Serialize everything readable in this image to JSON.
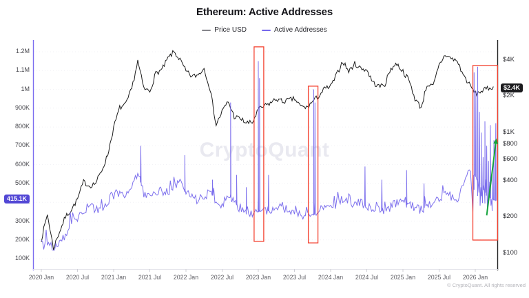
{
  "header": {
    "title": "Ethereum: Active Addresses"
  },
  "legend": [
    {
      "label": "Price USD",
      "color": "#85858b"
    },
    {
      "label": "Active Addresses",
      "color": "#7668ec"
    }
  ],
  "watermark": "CryptoQuant",
  "footer": {
    "copyright": "© CryptoQuant. All rights reserved"
  },
  "chart_data": {
    "type": "line",
    "title": "Ethereum: Active Addresses",
    "x_axis": {
      "start": "2020-01",
      "step": "month",
      "tick_every_months": 6,
      "tick_labels": [
        "2020 Jan",
        "2020 Jul",
        "2021 Jan",
        "2021 Jul",
        "2022 Jan",
        "2022 Jul",
        "2023 Jan",
        "2023 Jul",
        "2024 Jan",
        "2024 Jul",
        "2025 Jan",
        "2025 Jul",
        "2026 Jan"
      ]
    },
    "left_axis": {
      "name": "Active Addresses",
      "scale": "linear",
      "unit": "addresses",
      "range_k": [
        100,
        1200
      ],
      "ticks": [
        {
          "label": "1.2M",
          "value_k": 1200
        },
        {
          "label": "1.1M",
          "value_k": 1100
        },
        {
          "label": "1M",
          "value_k": 1000
        },
        {
          "label": "900K",
          "value_k": 900
        },
        {
          "label": "800K",
          "value_k": 800
        },
        {
          "label": "700K",
          "value_k": 700
        },
        {
          "label": "600K",
          "value_k": 600
        },
        {
          "label": "500K",
          "value_k": 500
        },
        {
          "label": "400K",
          "value_k": 400
        },
        {
          "label": "300K",
          "value_k": 300
        },
        {
          "label": "200K",
          "value_k": 200
        },
        {
          "label": "100K",
          "value_k": 100
        }
      ],
      "current": {
        "label": "415.1K",
        "value_k": 415.1,
        "badge_color": "#5247d5"
      }
    },
    "right_axis": {
      "name": "Price USD",
      "scale": "log",
      "range_usd": [
        100,
        4700
      ],
      "ticks": [
        {
          "label": "$4K",
          "value": 4000
        },
        {
          "label": "$2K",
          "value": 2000
        },
        {
          "label": "$1K",
          "value": 1000
        },
        {
          "label": "$800",
          "value": 800
        },
        {
          "label": "$600",
          "value": 600
        },
        {
          "label": "$400",
          "value": 400
        },
        {
          "label": "$200",
          "value": 200
        },
        {
          "label": "$100",
          "value": 100
        }
      ],
      "current": {
        "label": "$2.4K",
        "value": 2400,
        "badge_color": "#1b1b1e"
      }
    },
    "series": [
      {
        "name": "Price USD",
        "axis": "right",
        "color": "#1a1a1a",
        "monthly_values_usd": [
          130,
          210,
          110,
          150,
          200,
          230,
          280,
          390,
          360,
          380,
          480,
          650,
          1100,
          1600,
          1700,
          2300,
          3900,
          2300,
          2200,
          3100,
          3300,
          4100,
          4650,
          4000,
          3200,
          2900,
          3000,
          3400,
          2300,
          1150,
          1500,
          1800,
          1350,
          1300,
          1200,
          1200,
          1550,
          1650,
          1750,
          1900,
          1800,
          1850,
          1900,
          1650,
          1600,
          1800,
          2000,
          2300,
          2400,
          3000,
          3900,
          3200,
          3700,
          3400,
          3300,
          2600,
          2400,
          2500,
          3400,
          3700,
          3200,
          2700,
          1900,
          1600,
          2500,
          2400,
          3600,
          4400,
          4100,
          3900,
          3000,
          2500,
          2100,
          2200,
          2300,
          2400
        ]
      },
      {
        "name": "Active Addresses",
        "axis": "left",
        "color": "#7668ec",
        "monthly_values_k": [
          168,
          180,
          150,
          190,
          230,
          290,
          320,
          355,
          380,
          360,
          370,
          390,
          430,
          450,
          440,
          470,
          560,
          450,
          430,
          450,
          460,
          450,
          480,
          520,
          450,
          420,
          410,
          430,
          460,
          400,
          390,
          430,
          420,
          350,
          360,
          340,
          350,
          360,
          350,
          360,
          380,
          350,
          340,
          330,
          320,
          330,
          350,
          380,
          360,
          380,
          420,
          400,
          390,
          400,
          380,
          370,
          360,
          350,
          380,
          400,
          400,
          380,
          370,
          360,
          380,
          400,
          420,
          450,
          430,
          420,
          480,
          560,
          540,
          480,
          430,
          415.1
        ],
        "spike_events_k": [
          [
            16.5,
            700
          ],
          [
            23.8,
            650
          ],
          [
            28.4,
            520
          ],
          [
            31.4,
            930
          ],
          [
            32.4,
            545
          ],
          [
            34.0,
            480
          ],
          [
            36.0,
            1150
          ],
          [
            36.2,
            1060
          ],
          [
            37.7,
            545
          ],
          [
            45.2,
            1000
          ],
          [
            45.4,
            930
          ],
          [
            53.7,
            590
          ],
          [
            56.5,
            520
          ],
          [
            60.6,
            570
          ],
          [
            63.5,
            500
          ],
          [
            71.8,
            1090
          ],
          [
            72.1,
            990
          ],
          [
            72.4,
            1120
          ],
          [
            72.7,
            880
          ],
          [
            73.0,
            770
          ],
          [
            73.3,
            640
          ],
          [
            73.6,
            830
          ],
          [
            73.9,
            700
          ],
          [
            74.2,
            620
          ],
          [
            74.5,
            810
          ],
          [
            74.8,
            560
          ],
          [
            75.1,
            730
          ],
          [
            75.4,
            820
          ]
        ]
      }
    ],
    "annotations": {
      "box_color": "#f4402f",
      "highlight_boxes": [
        {
          "m0": 35.3,
          "m1": 36.9,
          "v0_k": 192,
          "v1_k": 1226
        },
        {
          "m0": 44.3,
          "m1": 45.9,
          "v0_k": 184,
          "v1_k": 1017
        },
        {
          "m0": 71.6,
          "m1": 75.7,
          "v0_k": 199,
          "v1_k": 1127
        }
      ],
      "trend_arrow": {
        "m0": 73.9,
        "v0_k": 330,
        "m1": 75.5,
        "v1_k": 740,
        "color": "#15a33c"
      }
    }
  }
}
